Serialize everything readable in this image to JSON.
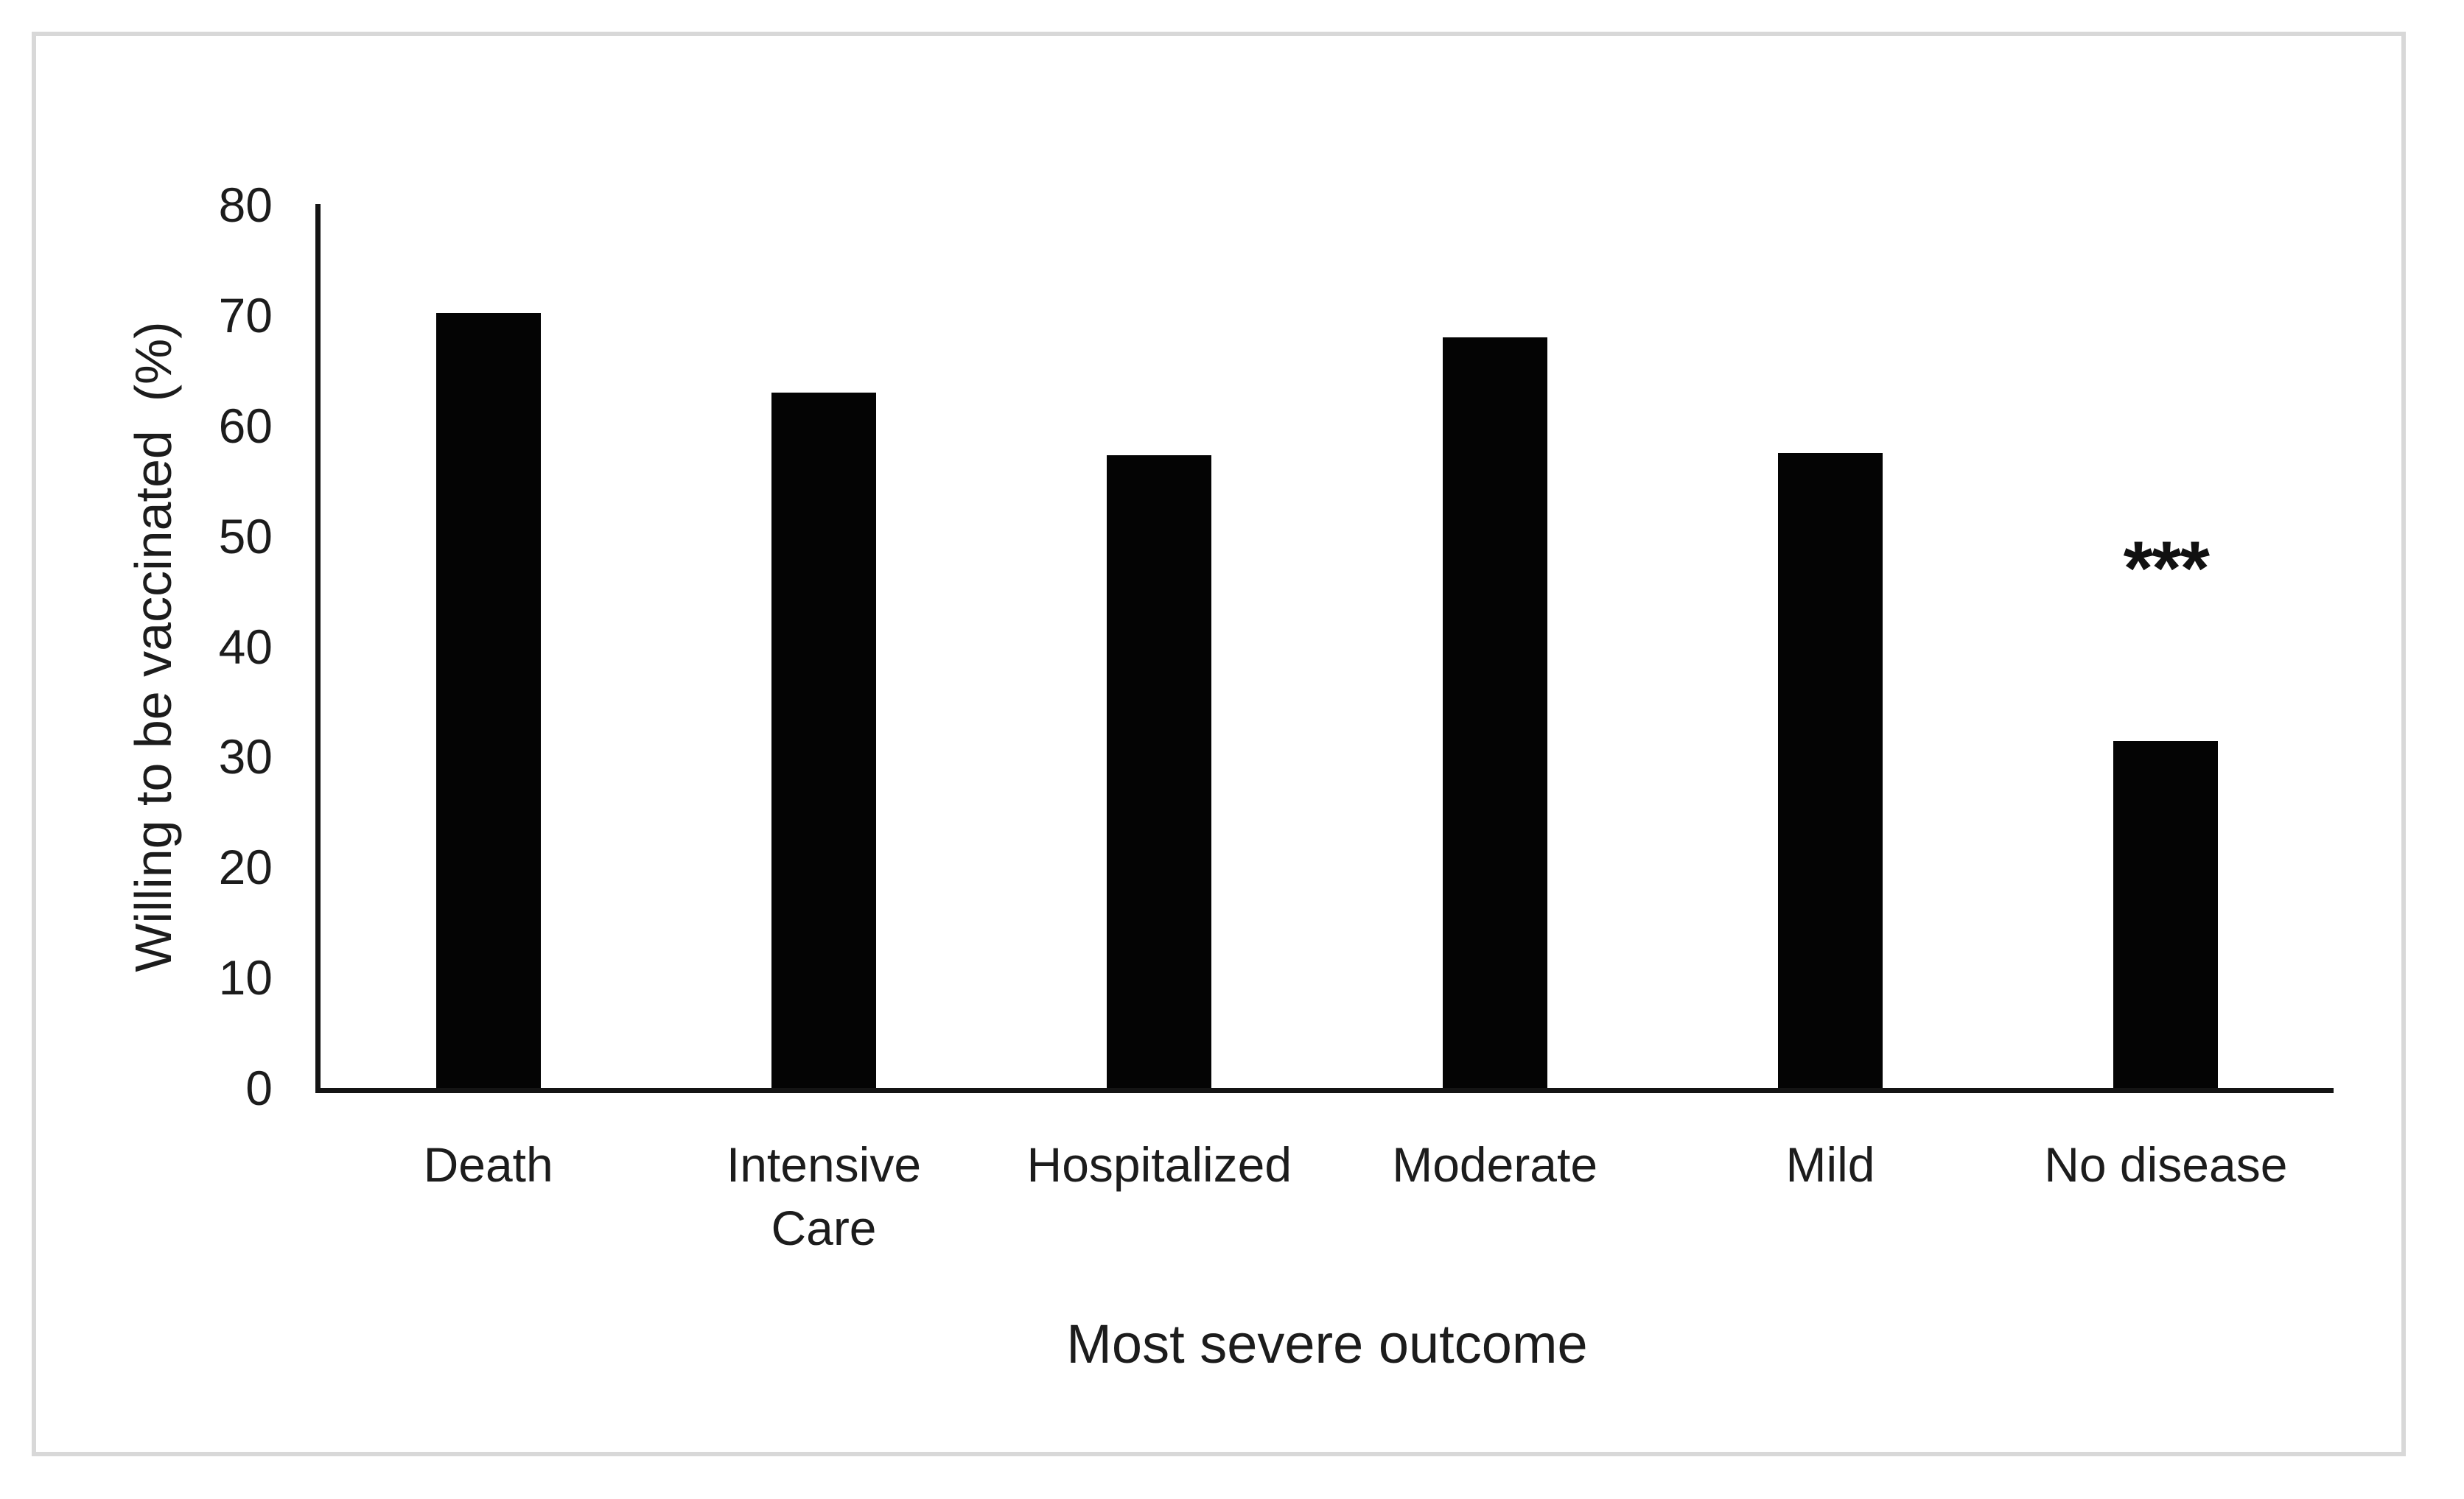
{
  "figure": {
    "background_color": "#ffffff",
    "border_color": "#d8d8d8",
    "bar_color": "#040404",
    "axis_color": "#141414",
    "text_color": "#1c1c1c"
  },
  "chart_data": {
    "type": "bar",
    "title": "",
    "categories": [
      "Death",
      "Intensive Care",
      "Hospitalized",
      "Moderate",
      "Mild",
      "No disease"
    ],
    "values": [
      70.2,
      63,
      57.3,
      68,
      57.5,
      31.4
    ],
    "xlabel": "Most severe outcome",
    "ylabel": "Willing to be vaccinated  (%)",
    "ylim": [
      0,
      80
    ],
    "yticks": [
      0,
      10,
      20,
      30,
      40,
      50,
      60,
      70,
      80
    ],
    "grid": false,
    "legend": null,
    "annotations": [
      {
        "text": "***",
        "category": "No disease",
        "position": "above-bar",
        "meaning": "statistical-significance-marker"
      }
    ]
  }
}
